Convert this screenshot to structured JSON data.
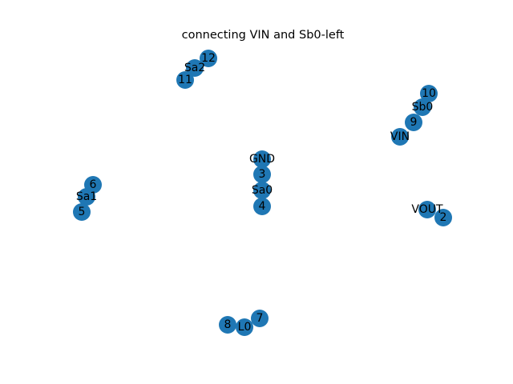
{
  "title": "connecting VIN and Sb0-left",
  "node_color": "#1f77b4",
  "nodes": [
    {
      "id": "12",
      "label": "12"
    },
    {
      "id": "Sa2",
      "label": "Sa2"
    },
    {
      "id": "11",
      "label": "11"
    },
    {
      "id": "10",
      "label": "10"
    },
    {
      "id": "Sb0",
      "label": "Sb0"
    },
    {
      "id": "9",
      "label": "9"
    },
    {
      "id": "VIN",
      "label": "VIN"
    },
    {
      "id": "GND",
      "label": "GND"
    },
    {
      "id": "3",
      "label": "3"
    },
    {
      "id": "Sa0",
      "label": "Sa0"
    },
    {
      "id": "4",
      "label": "4"
    },
    {
      "id": "6",
      "label": "6"
    },
    {
      "id": "Sa1",
      "label": "Sa1"
    },
    {
      "id": "5",
      "label": "5"
    },
    {
      "id": "VOUT",
      "label": "VOUT"
    },
    {
      "id": "2",
      "label": "2"
    },
    {
      "id": "7",
      "label": "7"
    },
    {
      "id": "8",
      "label": "8"
    },
    {
      "id": "L0",
      "label": "L0"
    }
  ]
}
